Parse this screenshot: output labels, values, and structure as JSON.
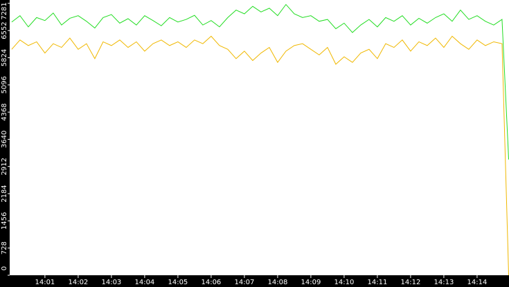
{
  "chart_data": {
    "type": "line",
    "x": [
      840,
      840.25,
      840.5,
      840.75,
      841,
      841.25,
      841.5,
      841.75,
      842,
      842.25,
      842.5,
      842.75,
      843,
      843.25,
      843.5,
      843.75,
      844,
      844.25,
      844.5,
      844.75,
      845,
      845.25,
      845.5,
      845.75,
      846,
      846.25,
      846.5,
      846.75,
      847,
      847.25,
      847.5,
      847.75,
      848,
      848.25,
      848.5,
      848.75,
      849,
      849.25,
      849.5,
      849.75,
      850,
      850.25,
      850.5,
      850.75,
      851,
      851.25,
      851.5,
      851.75,
      852,
      852.25,
      852.5,
      852.75,
      853,
      853.25,
      853.5,
      853.75,
      854,
      854.25,
      854.5,
      854.75,
      854.95
    ],
    "series": [
      {
        "color": "#22dd22",
        "values": [
          6780,
          6950,
          6650,
          6900,
          6820,
          7020,
          6700,
          6880,
          6950,
          6800,
          6620,
          6900,
          6980,
          6750,
          6870,
          6700,
          6950,
          6820,
          6680,
          6900,
          6780,
          6850,
          6960,
          6700,
          6820,
          6650,
          6900,
          7100,
          7000,
          7200,
          7050,
          7150,
          6950,
          7250,
          7000,
          6900,
          6950,
          6800,
          6850,
          6600,
          6750,
          6500,
          6700,
          6850,
          6650,
          6900,
          6800,
          6950,
          6700,
          6880,
          6750,
          6900,
          7000,
          6800,
          7100,
          6850,
          6950,
          6800,
          6700,
          6850,
          3100
        ]
      },
      {
        "color": "#f0b800",
        "values": [
          6050,
          6300,
          6150,
          6250,
          5950,
          6200,
          6100,
          6350,
          6050,
          6200,
          5800,
          6250,
          6150,
          6300,
          6100,
          6250,
          6000,
          6200,
          6300,
          6150,
          6250,
          6100,
          6300,
          6200,
          6400,
          6150,
          6050,
          5800,
          6000,
          5750,
          5950,
          6100,
          5700,
          6000,
          6150,
          6200,
          6050,
          5900,
          6100,
          5650,
          5850,
          5700,
          5950,
          6050,
          5800,
          6200,
          6100,
          6300,
          6000,
          6250,
          6150,
          6350,
          6100,
          6400,
          6200,
          6050,
          6300,
          6150,
          6250,
          6200,
          0
        ]
      }
    ],
    "xlim": [
      839.94,
      854.96
    ],
    "xticks": [
      {
        "value": 841,
        "label": "14:01"
      },
      {
        "value": 842,
        "label": "14:02"
      },
      {
        "value": 843,
        "label": "14:03"
      },
      {
        "value": 844,
        "label": "14:04"
      },
      {
        "value": 845,
        "label": "14:05"
      },
      {
        "value": 846,
        "label": "14:06"
      },
      {
        "value": 847,
        "label": "14:07"
      },
      {
        "value": 848,
        "label": "14:08"
      },
      {
        "value": 849,
        "label": "14:09"
      },
      {
        "value": 850,
        "label": "14:10"
      },
      {
        "value": 851,
        "label": "14:11"
      },
      {
        "value": 852,
        "label": "14:12"
      },
      {
        "value": 853,
        "label": "14:13"
      },
      {
        "value": 854,
        "label": "14:14"
      }
    ],
    "ylim": [
      0,
      7370
    ],
    "yticks": [
      0,
      728,
      1456,
      2184,
      2912,
      3640,
      4368,
      5096,
      5824,
      6552,
      7281
    ]
  }
}
